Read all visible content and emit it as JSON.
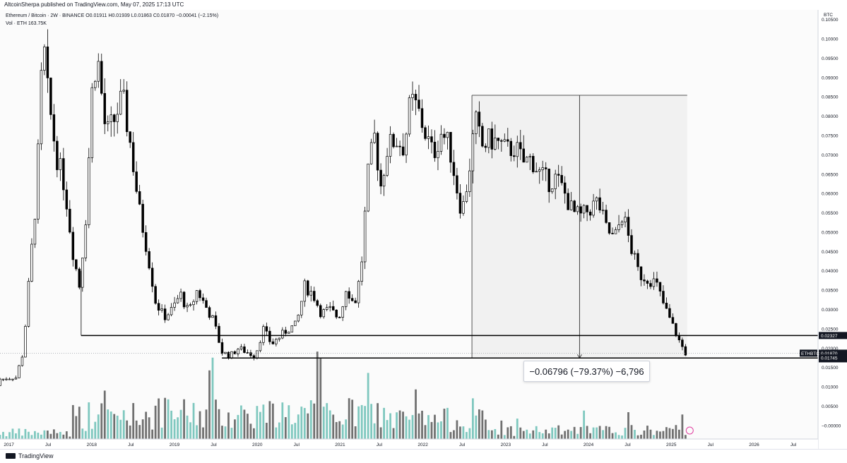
{
  "header": {
    "publisher": "AltcoinSherpa published on TradingView.com, May 07, 2025 17:13 UTC"
  },
  "legend": {
    "symbol": "Ethereum / Bitcoin · 2W · BINANCE",
    "ohlc": "O0.01911 H0.01939 L0.01863 C0.01870 −0.00041 (−2.15%)",
    "volume": "Vol · ETH 163.75K"
  },
  "footer": {
    "brand": "TradingView"
  },
  "measurement": {
    "label": "−0.06796 (−79.37%) −6,796"
  },
  "colors": {
    "up_candle": "#ffffff",
    "down_candle": "#000000",
    "candle_outline": "#000000",
    "volume_up": "#7fc8bf",
    "volume_down": "#707070",
    "tag_dark": "#131722"
  },
  "chart_data": {
    "type": "candlestick",
    "symbol": "ETHBTC",
    "ylabel": "BTC",
    "ylim": [
      -0.0035,
      0.1075
    ],
    "y_ticks": [
      0.105,
      0.1,
      0.095,
      0.09,
      0.085,
      0.08,
      0.075,
      0.07,
      0.065,
      0.06,
      0.055,
      0.05,
      0.045,
      0.04,
      0.035,
      0.03,
      0.025,
      0.02,
      0.015,
      0.01,
      0.005,
      -0.0
    ],
    "y_tick_labels": [
      "0.10500",
      "0.10000",
      "0.09500",
      "0.09000",
      "0.08500",
      "0.08000",
      "0.07500",
      "0.07000",
      "0.06500",
      "0.06000",
      "0.05500",
      "0.05000",
      "0.04500",
      "0.04000",
      "0.03500",
      "0.03000",
      "0.02500",
      "0.02000",
      "0.01500",
      "0.01000",
      "0.00500",
      "−0.00000"
    ],
    "x_ticks": [
      2017.0,
      2017.5,
      2018.0,
      2018.5,
      2019.0,
      2019.5,
      2020.0,
      2020.5,
      2021.0,
      2021.5,
      2022.0,
      2022.5,
      2023.0,
      2023.5,
      2024.0,
      2024.5,
      2025.0,
      2025.5,
      2026.0,
      2026.5
    ],
    "x_tick_labels": [
      "2017",
      "Jul",
      "2018",
      "Jul",
      "2019",
      "Jul",
      "2020",
      "Jul",
      "2021",
      "Jul",
      "2022",
      "Jul",
      "2023",
      "Jul",
      "2024",
      "Jul",
      "2025",
      "Jul",
      "2026",
      "Jul"
    ],
    "xlim": [
      2016.92,
      2026.8
    ],
    "price_path": [
      [
        2016.92,
        0.0103
      ],
      [
        2017.0,
        0.011
      ],
      [
        2017.1,
        0.0115
      ],
      [
        2017.2,
        0.019
      ],
      [
        2017.28,
        0.04
      ],
      [
        2017.36,
        0.06
      ],
      [
        2017.44,
        0.1
      ],
      [
        2017.5,
        0.085
      ],
      [
        2017.6,
        0.07
      ],
      [
        2017.7,
        0.062
      ],
      [
        2017.8,
        0.045
      ],
      [
        2017.88,
        0.036
      ],
      [
        2017.96,
        0.055
      ],
      [
        2018.04,
        0.09
      ],
      [
        2018.1,
        0.095
      ],
      [
        2018.2,
        0.075
      ],
      [
        2018.3,
        0.079
      ],
      [
        2018.4,
        0.085
      ],
      [
        2018.5,
        0.072
      ],
      [
        2018.6,
        0.056
      ],
      [
        2018.7,
        0.045
      ],
      [
        2018.8,
        0.032
      ],
      [
        2018.9,
        0.028
      ],
      [
        2019.0,
        0.03
      ],
      [
        2019.1,
        0.034
      ],
      [
        2019.2,
        0.029
      ],
      [
        2019.3,
        0.035
      ],
      [
        2019.4,
        0.031
      ],
      [
        2019.5,
        0.027
      ],
      [
        2019.6,
        0.019
      ],
      [
        2019.7,
        0.018
      ],
      [
        2019.8,
        0.02
      ],
      [
        2019.9,
        0.019
      ],
      [
        2020.0,
        0.018
      ],
      [
        2020.1,
        0.025
      ],
      [
        2020.2,
        0.021
      ],
      [
        2020.3,
        0.023
      ],
      [
        2020.4,
        0.025
      ],
      [
        2020.5,
        0.026
      ],
      [
        2020.6,
        0.036
      ],
      [
        2020.7,
        0.034
      ],
      [
        2020.8,
        0.029
      ],
      [
        2020.9,
        0.03
      ],
      [
        2021.0,
        0.028
      ],
      [
        2021.05,
        0.03
      ],
      [
        2021.1,
        0.036
      ],
      [
        2021.2,
        0.031
      ],
      [
        2021.28,
        0.04
      ],
      [
        2021.36,
        0.064
      ],
      [
        2021.44,
        0.075
      ],
      [
        2021.52,
        0.062
      ],
      [
        2021.6,
        0.072
      ],
      [
        2021.7,
        0.074
      ],
      [
        2021.8,
        0.072
      ],
      [
        2021.88,
        0.084
      ],
      [
        2021.96,
        0.082
      ],
      [
        2022.05,
        0.076
      ],
      [
        2022.15,
        0.07
      ],
      [
        2022.25,
        0.076
      ],
      [
        2022.35,
        0.072
      ],
      [
        2022.45,
        0.06
      ],
      [
        2022.5,
        0.055
      ],
      [
        2022.58,
        0.065
      ],
      [
        2022.66,
        0.079
      ],
      [
        2022.74,
        0.072
      ],
      [
        2022.84,
        0.074
      ],
      [
        2022.94,
        0.073
      ],
      [
        2023.04,
        0.071
      ],
      [
        2023.14,
        0.072
      ],
      [
        2023.24,
        0.068
      ],
      [
        2023.34,
        0.069
      ],
      [
        2023.44,
        0.065
      ],
      [
        2023.54,
        0.063
      ],
      [
        2023.64,
        0.064
      ],
      [
        2023.74,
        0.06
      ],
      [
        2023.84,
        0.055
      ],
      [
        2023.94,
        0.054
      ],
      [
        2024.04,
        0.056
      ],
      [
        2024.14,
        0.058
      ],
      [
        2024.24,
        0.051
      ],
      [
        2024.34,
        0.048
      ],
      [
        2024.44,
        0.055
      ],
      [
        2024.54,
        0.046
      ],
      [
        2024.64,
        0.039
      ],
      [
        2024.74,
        0.038
      ],
      [
        2024.84,
        0.037
      ],
      [
        2024.94,
        0.031
      ],
      [
        2025.04,
        0.026
      ],
      [
        2025.12,
        0.022
      ],
      [
        2025.2,
        0.0187
      ]
    ],
    "volume_ticks_note": "",
    "price_levels": [
      {
        "value": 0.02327,
        "label": "0.02327"
      },
      {
        "value": 0.01745,
        "label": "0.01745"
      }
    ],
    "last_price": {
      "value": 0.0187,
      "label": "0.01870",
      "countdown": "4d 7h",
      "symbol": "ETHBTC"
    },
    "other_label": "0.02000",
    "measurement_range": {
      "from_x": 2022.62,
      "to_x": 2025.22,
      "high": 0.08541,
      "low": 0.01745,
      "change": -0.06796,
      "change_pct": -79.37
    }
  }
}
